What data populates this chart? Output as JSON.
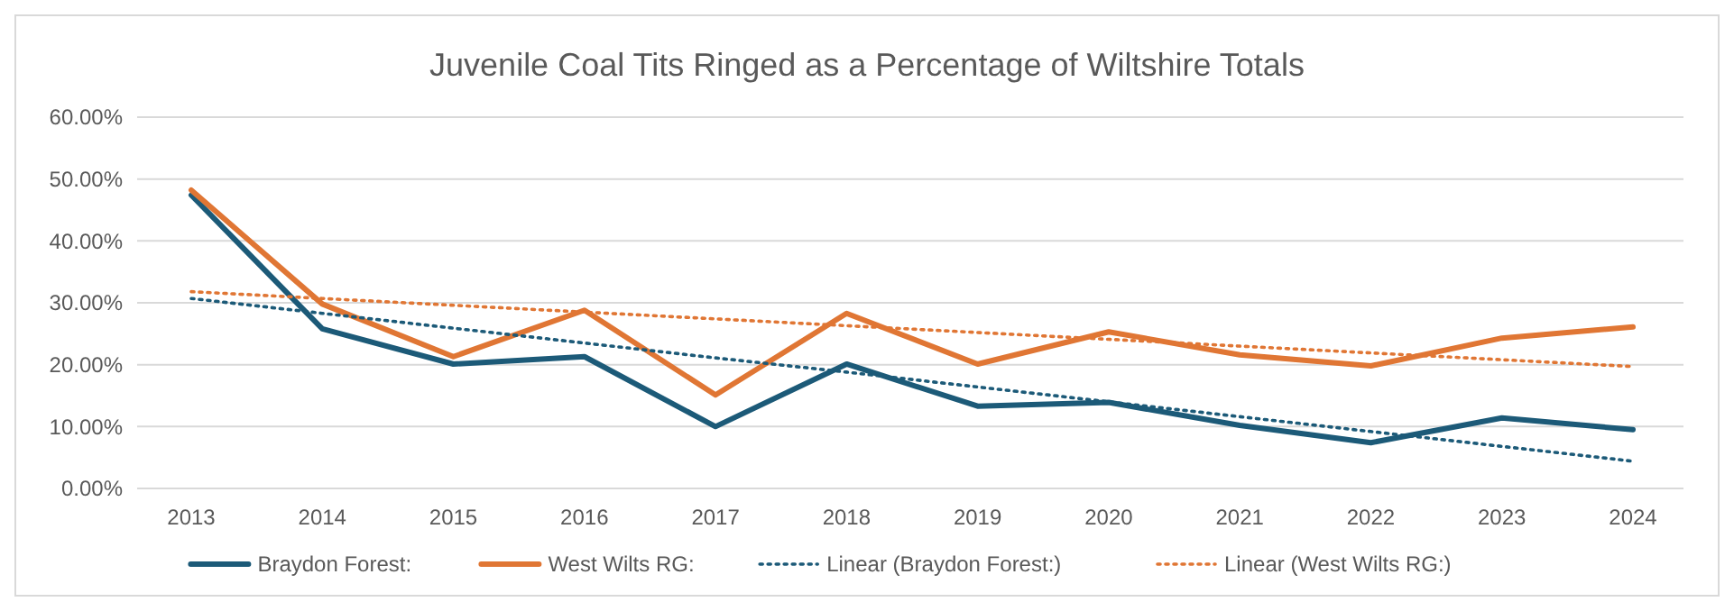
{
  "chart_data": {
    "type": "line",
    "title": "Juvenile Coal Tits Ringed as a Percentage of Wiltshire Totals",
    "categories": [
      "2013",
      "2014",
      "2015",
      "2016",
      "2017",
      "2018",
      "2019",
      "2020",
      "2021",
      "2022",
      "2023",
      "2024"
    ],
    "series": [
      {
        "name": "Braydon Forest:",
        "color": "#1c5a78",
        "values": [
          47.4,
          25.8,
          20.1,
          21.3,
          10.0,
          20.1,
          13.3,
          13.9,
          10.2,
          7.4,
          11.4,
          9.5
        ]
      },
      {
        "name": "West Wilts RG:",
        "color": "#e07634",
        "values": [
          48.2,
          29.8,
          21.3,
          28.8,
          15.1,
          28.3,
          20.1,
          25.3,
          21.6,
          19.8,
          24.3,
          26.1
        ]
      },
      {
        "name": "Linear (Braydon Forest:)",
        "color": "#1c5a78",
        "line_style": "dotted",
        "values": [
          30.7,
          28.3,
          25.9,
          23.5,
          21.1,
          18.8,
          16.4,
          14.0,
          11.6,
          9.2,
          6.8,
          4.4
        ]
      },
      {
        "name": "Linear (West Wilts RG:)",
        "color": "#e07634",
        "line_style": "dotted",
        "values": [
          31.8,
          30.7,
          29.6,
          28.5,
          27.4,
          26.3,
          25.2,
          24.1,
          23.0,
          21.9,
          20.8,
          19.7
        ]
      }
    ],
    "ylim": [
      0,
      60
    ],
    "yticks": [
      {
        "value": 0,
        "label": "0.00%"
      },
      {
        "value": 10,
        "label": "10.00%"
      },
      {
        "value": 20,
        "label": "20.00%"
      },
      {
        "value": 30,
        "label": "30.00%"
      },
      {
        "value": 40,
        "label": "40.00%"
      },
      {
        "value": 50,
        "label": "50.00%"
      },
      {
        "value": 60,
        "label": "60.00%"
      }
    ],
    "grid": "y",
    "legend": "bottom",
    "line_style": "solid",
    "marker": "none"
  }
}
